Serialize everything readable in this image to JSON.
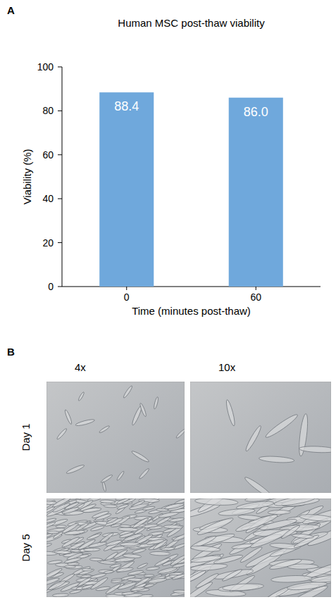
{
  "chart_data": {
    "type": "bar",
    "title": "Human MSC post-thaw viability",
    "x_label": "Time (minutes post-thaw)",
    "y_label": "Viability (%)",
    "categories": [
      "0",
      "60"
    ],
    "values": [
      88.4,
      86.0
    ],
    "value_labels": [
      "88.4",
      "86.0"
    ],
    "color": "#6fa8dc",
    "ylim": [
      0,
      100
    ],
    "yticks": [
      0,
      20,
      40,
      60,
      80,
      100
    ],
    "grid": false,
    "data_labels": true
  },
  "panel_a": {
    "label": "A"
  },
  "panel_b": {
    "label": "B",
    "columns": [
      "4x",
      "10x"
    ],
    "rows": [
      "Day 1",
      "Day 5"
    ]
  }
}
